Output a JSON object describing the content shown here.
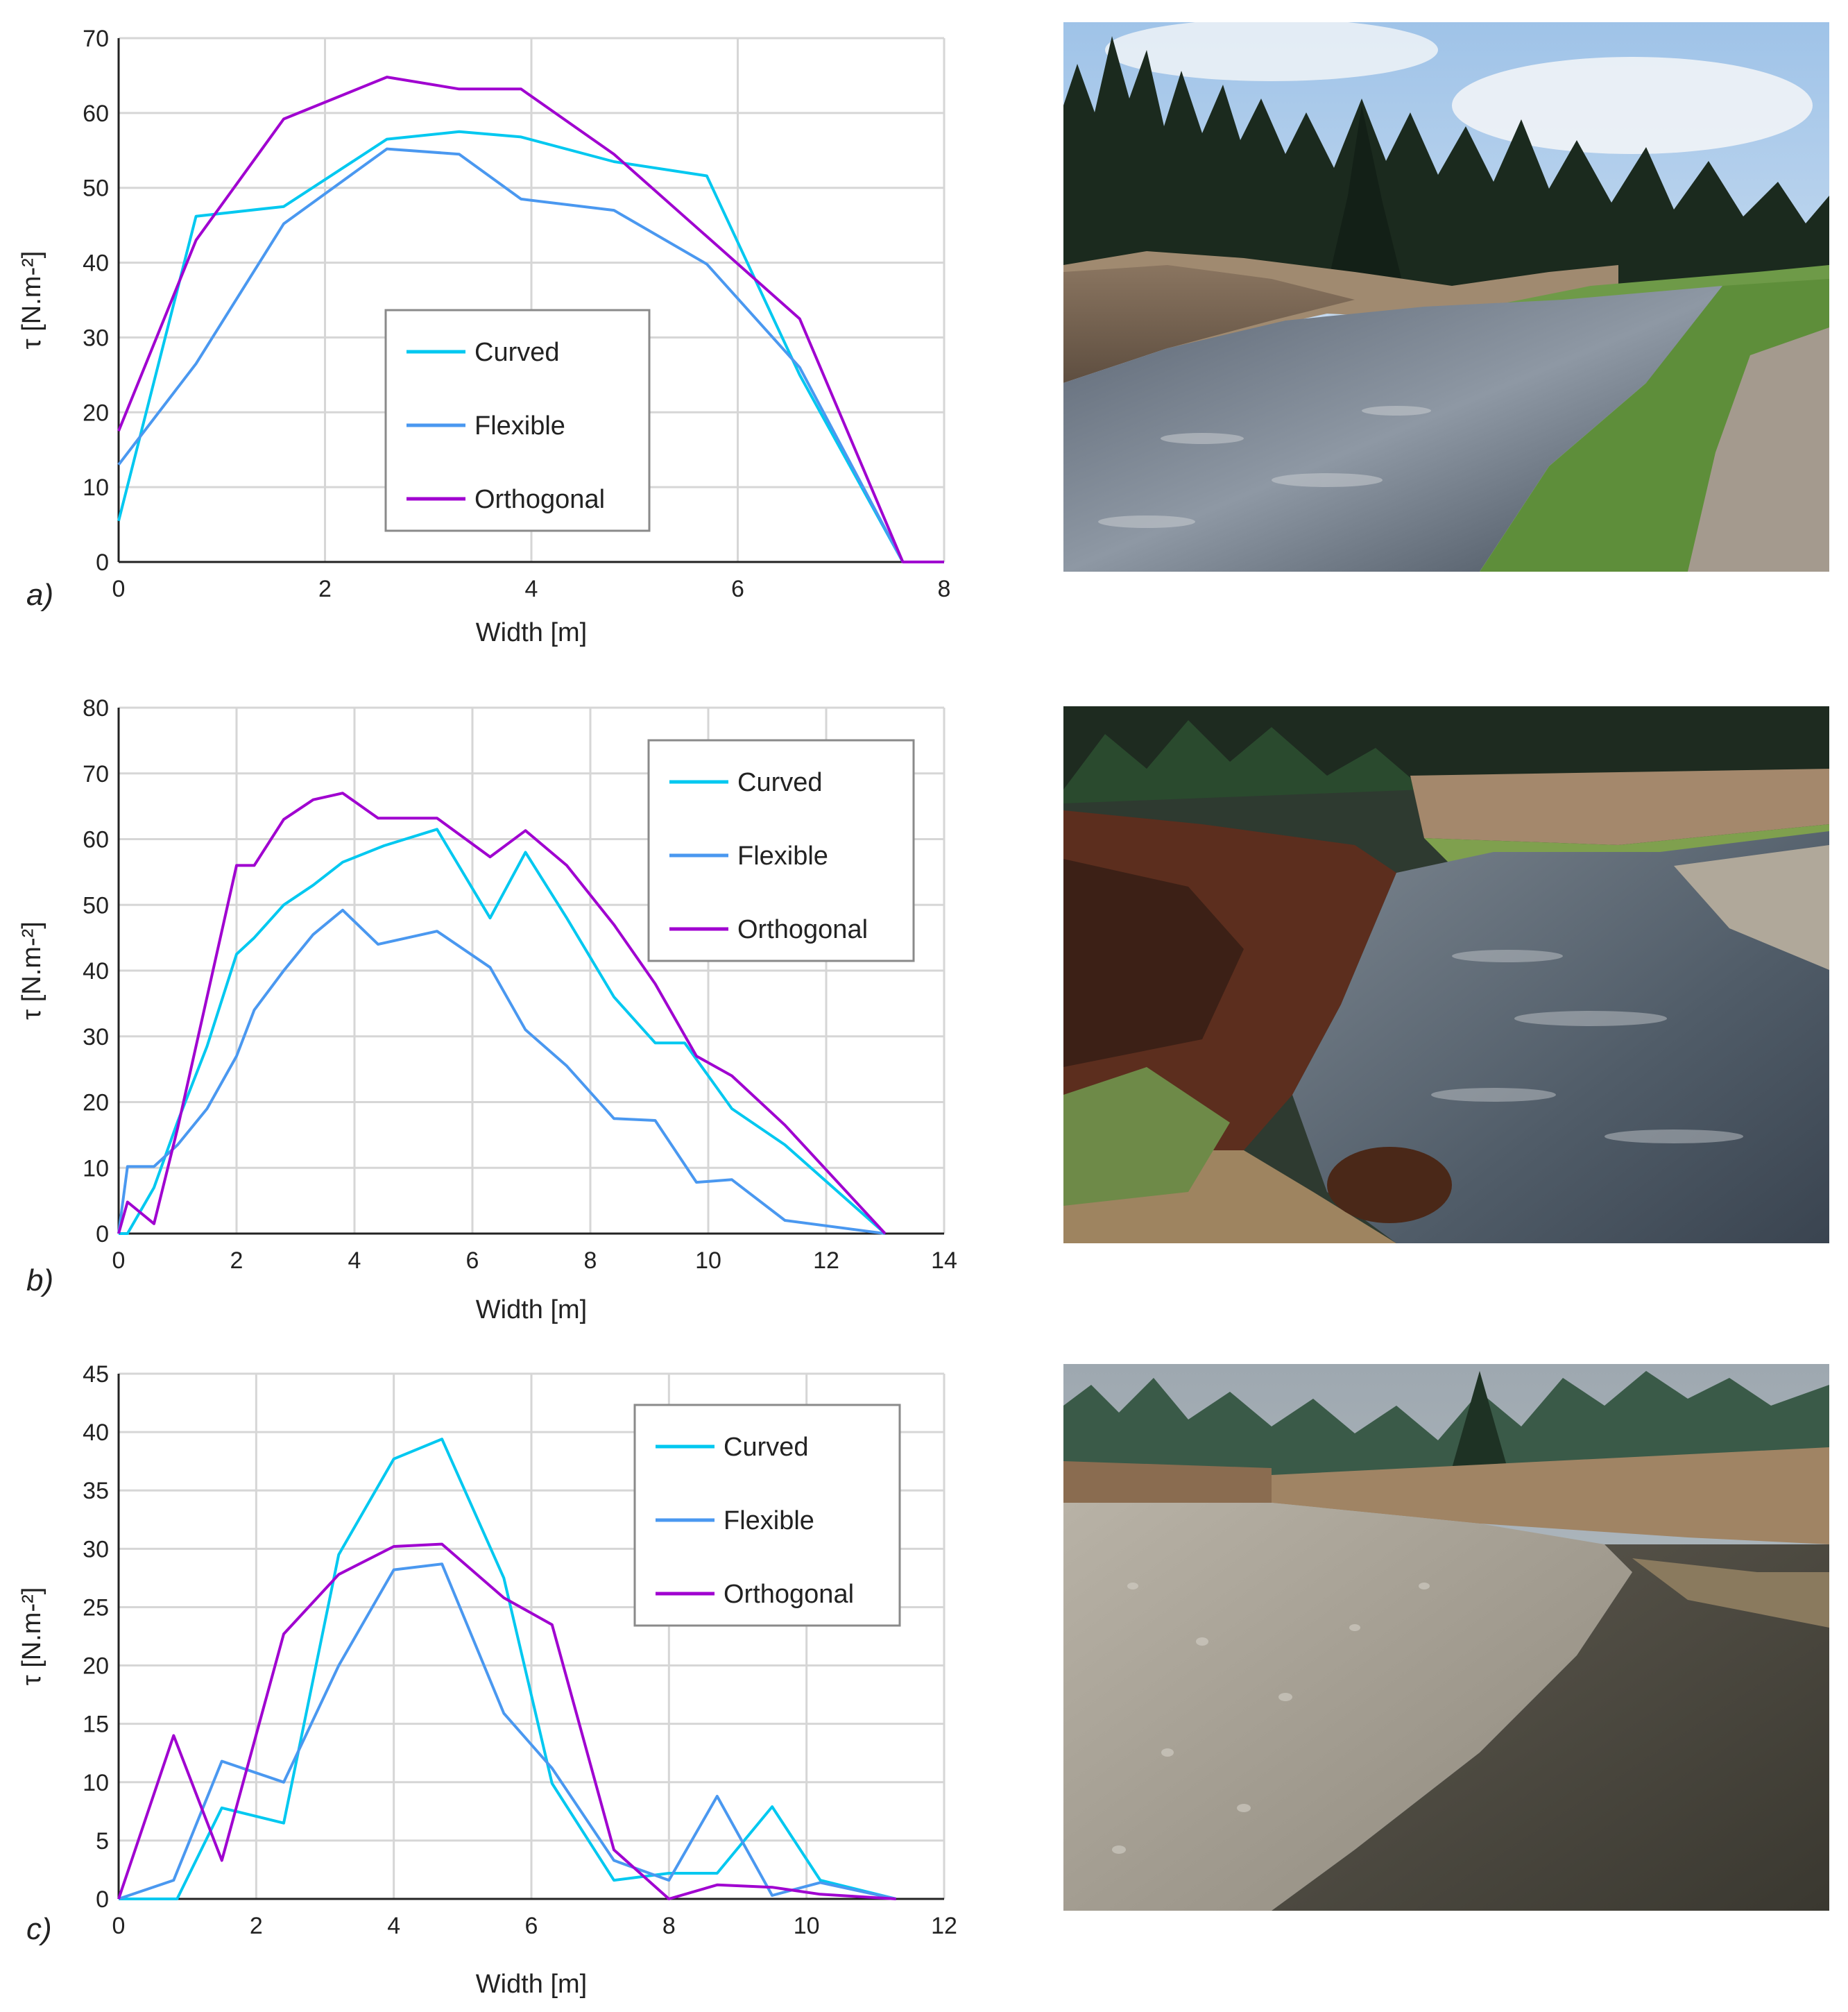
{
  "colors": {
    "curved": "#00C8F0",
    "flexible": "#4A98F0",
    "orthogonal": "#A000D0",
    "grid": "#D6D6D6",
    "axis": "#222222"
  },
  "photos": [
    {
      "name": "river-photo-a",
      "content": "stream-with-forest"
    },
    {
      "name": "river-photo-b",
      "content": "eroded-bank-stream"
    },
    {
      "name": "river-photo-c",
      "content": "gravel-bar-stream"
    }
  ],
  "chart_data": [
    {
      "type": "line",
      "panel_label": "a)",
      "xlabel": "Width [m]",
      "ylabel": "τ [N.m-²]",
      "xlim": [
        0,
        8
      ],
      "ylim": [
        0,
        70
      ],
      "xticks": [
        0,
        2,
        4,
        6,
        8
      ],
      "yticks": [
        0,
        10,
        20,
        30,
        40,
        50,
        60,
        70
      ],
      "grid": true,
      "legend_position": "center-left",
      "series": [
        {
          "name": "Curved",
          "color_key": "curved",
          "x": [
            0,
            0.75,
            1.6,
            2.6,
            3.3,
            3.9,
            4.8,
            5.7,
            6.6,
            7.6
          ],
          "y": [
            5.5,
            46.2,
            47.5,
            56.5,
            57.5,
            56.8,
            53.5,
            51.6,
            25.0,
            0
          ]
        },
        {
          "name": "Flexible",
          "color_key": "flexible",
          "x": [
            0,
            0.75,
            1.6,
            2.6,
            3.3,
            3.9,
            4.8,
            5.7,
            6.6,
            7.6
          ],
          "y": [
            13.0,
            26.5,
            45.2,
            55.2,
            54.5,
            48.5,
            47.0,
            39.8,
            26.0,
            0
          ]
        },
        {
          "name": "Orthogonal",
          "color_key": "orthogonal",
          "x": [
            0,
            0.75,
            1.6,
            2.6,
            3.3,
            3.9,
            4.8,
            5.7,
            6.6,
            7.6,
            8.0
          ],
          "y": [
            17.5,
            43.0,
            59.2,
            64.8,
            63.2,
            63.2,
            54.5,
            43.5,
            32.5,
            0,
            0
          ]
        }
      ]
    },
    {
      "type": "line",
      "panel_label": "b)",
      "xlabel": "Width [m]",
      "ylabel": "τ [N.m-²]",
      "xlim": [
        0,
        14
      ],
      "ylim": [
        0,
        80
      ],
      "xticks": [
        0,
        2,
        4,
        6,
        8,
        10,
        12,
        14
      ],
      "yticks": [
        0,
        10,
        20,
        30,
        40,
        50,
        60,
        70,
        80
      ],
      "grid": true,
      "legend_position": "top-right",
      "series": [
        {
          "name": "Curved",
          "color_key": "curved",
          "x": [
            0,
            0.15,
            0.6,
            1.0,
            1.5,
            2.0,
            2.3,
            2.8,
            3.3,
            3.8,
            4.5,
            5.4,
            6.3,
            6.9,
            7.6,
            8.4,
            9.1,
            9.6,
            10.4,
            11.3,
            13.0
          ],
          "y": [
            0,
            0,
            7.0,
            17.0,
            28.5,
            42.5,
            45.0,
            50.0,
            53.0,
            56.5,
            59.0,
            61.5,
            48.0,
            58.0,
            48.0,
            36.0,
            29.0,
            29.0,
            19.0,
            13.5,
            0
          ]
        },
        {
          "name": "Flexible",
          "color_key": "flexible",
          "x": [
            0,
            0.15,
            0.6,
            1.0,
            1.5,
            2.0,
            2.3,
            2.8,
            3.3,
            3.8,
            4.4,
            5.4,
            6.3,
            6.9,
            7.6,
            8.4,
            9.1,
            9.8,
            10.4,
            11.3,
            13.0
          ],
          "y": [
            0,
            10.2,
            10.2,
            13.5,
            19.0,
            27.0,
            34.0,
            40.0,
            45.5,
            49.2,
            44.0,
            46.0,
            40.5,
            31.0,
            25.5,
            17.5,
            17.2,
            7.8,
            8.2,
            2.0,
            0
          ]
        },
        {
          "name": "Orthogonal",
          "color_key": "orthogonal",
          "x": [
            0,
            0.15,
            0.6,
            1.0,
            1.5,
            2.0,
            2.3,
            2.8,
            3.3,
            3.8,
            4.4,
            5.4,
            6.3,
            6.9,
            7.6,
            8.4,
            9.1,
            9.8,
            10.4,
            11.3,
            13.0
          ],
          "y": [
            0,
            4.8,
            1.5,
            16.0,
            36.0,
            56.0,
            56.0,
            63.0,
            66.0,
            67.0,
            63.2,
            63.2,
            57.3,
            61.3,
            56.0,
            47.0,
            38.0,
            27.0,
            24.0,
            16.5,
            0
          ]
        }
      ]
    },
    {
      "type": "line",
      "panel_label": "c)",
      "xlabel": "Width [m]",
      "ylabel": "τ [N.m-²]",
      "xlim": [
        0,
        12
      ],
      "ylim": [
        0,
        45
      ],
      "xticks": [
        0,
        2,
        4,
        6,
        8,
        10,
        12
      ],
      "yticks": [
        0,
        5,
        10,
        15,
        20,
        25,
        30,
        35,
        40,
        45
      ],
      "grid": true,
      "legend_position": "top-right",
      "series": [
        {
          "name": "Curved",
          "color_key": "curved",
          "x": [
            0,
            0.85,
            1.5,
            2.4,
            3.2,
            4.0,
            4.7,
            5.6,
            6.3,
            7.2,
            8.0,
            8.7,
            9.5,
            10.2,
            11.3
          ],
          "y": [
            0,
            0,
            7.8,
            6.5,
            29.5,
            37.7,
            39.4,
            27.5,
            9.9,
            1.6,
            2.2,
            2.2,
            7.9,
            1.6,
            0
          ]
        },
        {
          "name": "Flexible",
          "color_key": "flexible",
          "x": [
            0,
            0.8,
            1.5,
            2.4,
            3.2,
            4.0,
            4.7,
            5.6,
            6.3,
            7.2,
            8.0,
            8.7,
            9.5,
            10.2,
            11.3
          ],
          "y": [
            0,
            1.6,
            11.8,
            10.0,
            20.0,
            28.2,
            28.7,
            15.9,
            11.2,
            3.3,
            1.6,
            8.8,
            0.3,
            1.4,
            0
          ]
        },
        {
          "name": "Orthogonal",
          "color_key": "orthogonal",
          "x": [
            0,
            0.8,
            1.5,
            2.4,
            3.2,
            4.0,
            4.7,
            5.6,
            6.3,
            7.2,
            8.0,
            8.7,
            9.5,
            10.2,
            11.3
          ],
          "y": [
            0,
            14.0,
            3.3,
            22.7,
            27.8,
            30.2,
            30.4,
            25.8,
            23.5,
            4.2,
            0,
            1.2,
            1.0,
            0.4,
            0
          ]
        }
      ]
    }
  ]
}
